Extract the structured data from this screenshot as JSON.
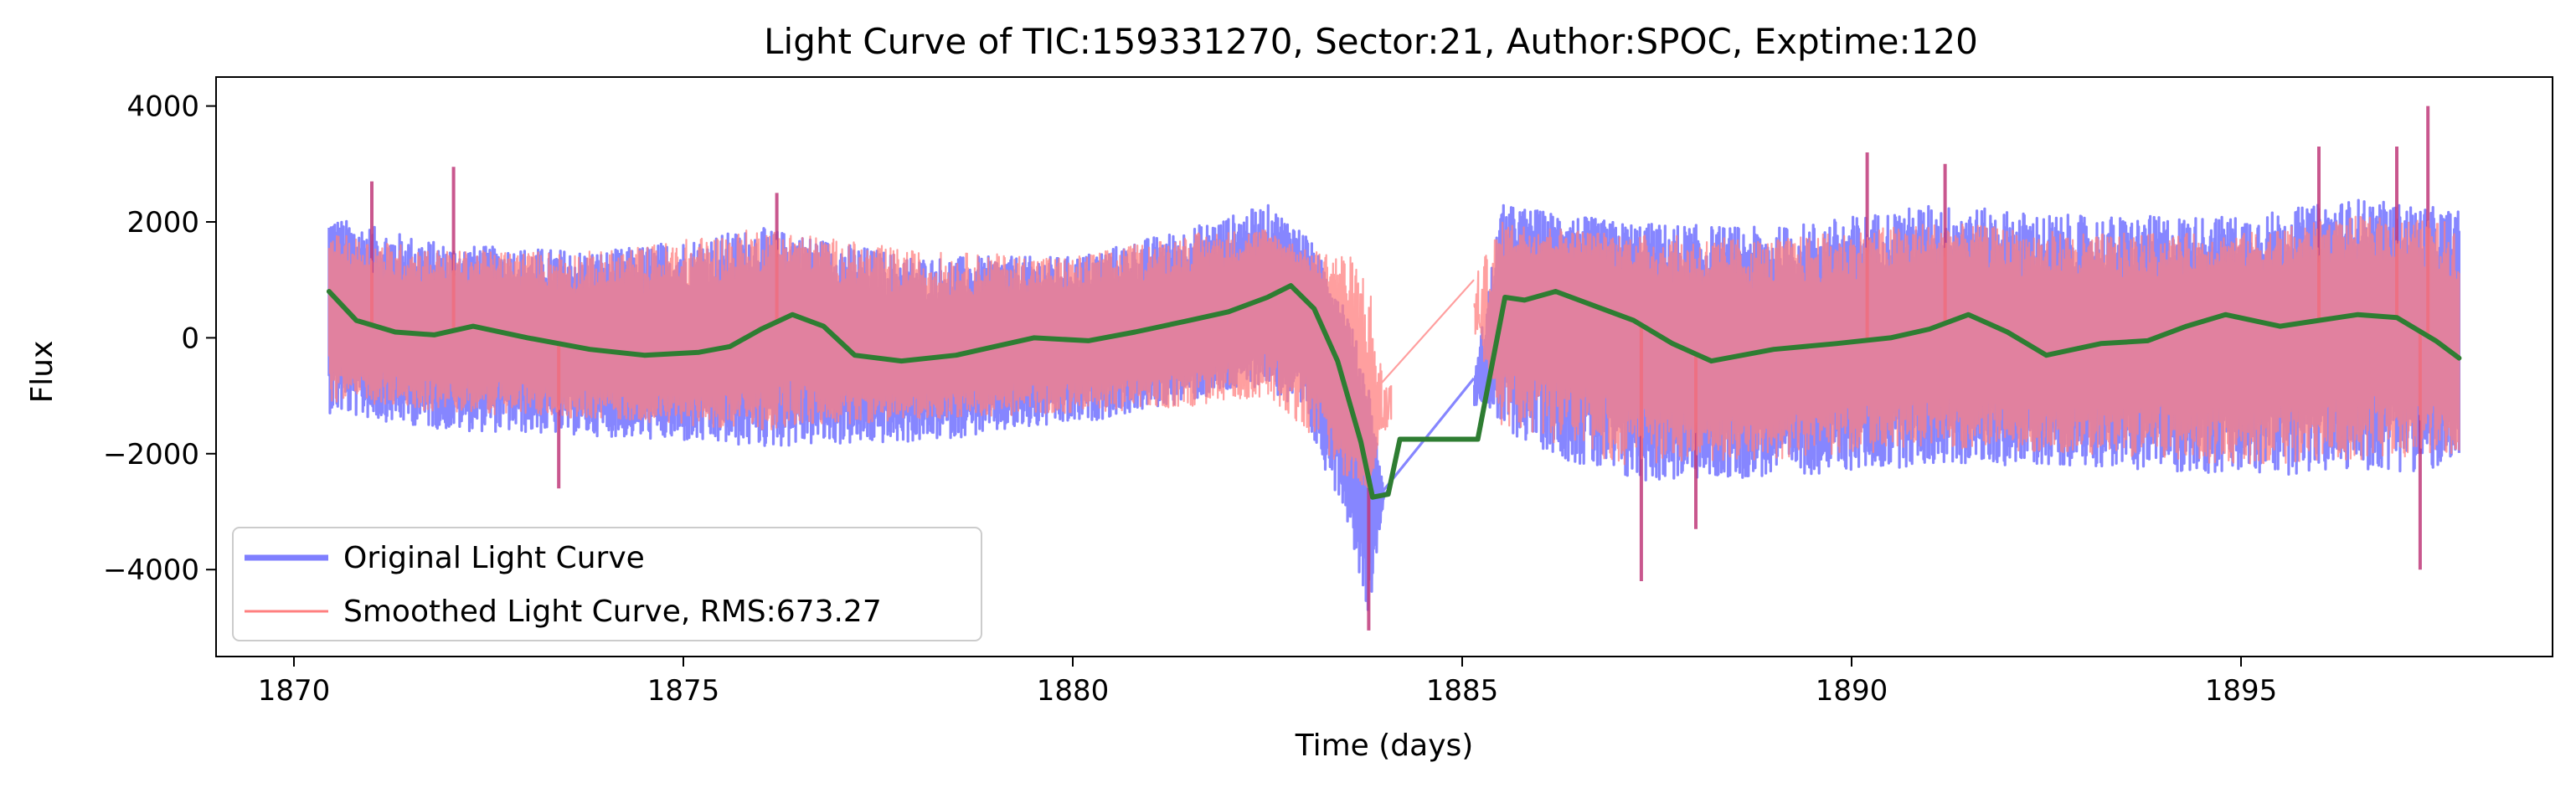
{
  "chart_data": {
    "type": "line",
    "title": "Light Curve of TIC:159331270, Sector:21, Author:SPOC, Exptime:120",
    "xlabel": "Time (days)",
    "ylabel": "Flux",
    "xlim": [
      1869.0,
      1899.0
    ],
    "ylim": [
      -5500,
      4500
    ],
    "xticks": [
      1870,
      1875,
      1880,
      1885,
      1890,
      1895
    ],
    "yticks": [
      -4000,
      -2000,
      0,
      2000,
      4000
    ],
    "xtick_labels": [
      "1870",
      "1875",
      "1880",
      "1885",
      "1890",
      "1895"
    ],
    "ytick_labels": [
      "−4000",
      "−2000",
      "0",
      "2000",
      "4000"
    ],
    "grid": false,
    "legend_position": "lower-left",
    "colors": {
      "original": "#7f7fff",
      "smoothed": "#ff7f7f",
      "trend": "#2e7d32",
      "overlap": "#c0397a"
    },
    "series": [
      {
        "name": "Original Light Curve",
        "style": "noisy-band",
        "envelope": {
          "x": [
            1870.45,
            1872.0,
            1874.0,
            1876.0,
            1878.0,
            1880.0,
            1881.5,
            1882.5,
            1883.0,
            1883.5,
            1883.8,
            1884.0,
            1885.15,
            1885.5,
            1887.0,
            1889.0,
            1891.0,
            1893.0,
            1895.0,
            1896.5,
            1897.8
          ],
          "upper": [
            2100,
            1600,
            1500,
            1900,
            1400,
            1400,
            1900,
            2300,
            1800,
            600,
            -800,
            -2700,
            -700,
            2300,
            2000,
            1900,
            2300,
            2100,
            2100,
            2400,
            2200
          ],
          "lower": [
            -1300,
            -1600,
            -1700,
            -1900,
            -1800,
            -1500,
            -1100,
            -800,
            -1600,
            -3000,
            -4800,
            -2700,
            -700,
            -1600,
            -2500,
            -2400,
            -2200,
            -2200,
            -2400,
            -2300,
            -2300
          ]
        },
        "spikes": [
          {
            "x": 1872.05,
            "y": 2950
          },
          {
            "x": 1871.0,
            "y": 2700
          },
          {
            "x": 1876.2,
            "y": 2500
          },
          {
            "x": 1890.2,
            "y": 3200
          },
          {
            "x": 1891.2,
            "y": 3000
          },
          {
            "x": 1896.0,
            "y": 3300
          },
          {
            "x": 1897.0,
            "y": 3300
          },
          {
            "x": 1897.4,
            "y": 4000
          },
          {
            "x": 1873.4,
            "y": -2600
          },
          {
            "x": 1887.3,
            "y": -4200
          },
          {
            "x": 1888.0,
            "y": -3300
          },
          {
            "x": 1897.3,
            "y": -4000
          },
          {
            "x": 1883.8,
            "y": -5050
          }
        ]
      },
      {
        "name": "Smoothed Light Curve, RMS:673.27",
        "style": "noisy-band",
        "envelope": {
          "x": [
            1870.45,
            1872.0,
            1874.0,
            1876.0,
            1878.0,
            1880.0,
            1881.5,
            1882.5,
            1883.0,
            1883.5,
            1883.8,
            1884.0,
            1885.15,
            1885.5,
            1887.0,
            1889.0,
            1891.0,
            1893.0,
            1895.0,
            1896.5,
            1897.8
          ],
          "upper": [
            1800,
            1500,
            1500,
            1900,
            1500,
            1400,
            1800,
            1900,
            1500,
            1500,
            1100,
            -800,
            1000,
            2000,
            1800,
            1700,
            2000,
            1800,
            1800,
            2100,
            2000
          ],
          "lower": [
            -1100,
            -1300,
            -1400,
            -1600,
            -1400,
            -1300,
            -1200,
            -1000,
            -1600,
            -2400,
            -2600,
            -800,
            1000,
            -1500,
            -2200,
            -2100,
            -1900,
            -2000,
            -2200,
            -2100,
            -2000
          ]
        }
      },
      {
        "name": "",
        "style": "trend-line",
        "x": [
          1870.45,
          1870.8,
          1871.3,
          1871.8,
          1872.3,
          1873.0,
          1873.8,
          1874.5,
          1875.2,
          1875.6,
          1876.0,
          1876.4,
          1876.8,
          1877.2,
          1877.8,
          1878.5,
          1879.0,
          1879.5,
          1880.2,
          1880.8,
          1881.5,
          1882.0,
          1882.5,
          1882.8,
          1883.1,
          1883.4,
          1883.7,
          1883.85,
          1884.05,
          1884.2,
          1885.2,
          1885.55,
          1885.8,
          1886.2,
          1886.7,
          1887.2,
          1887.7,
          1888.2,
          1889.0,
          1889.8,
          1890.5,
          1891.0,
          1891.5,
          1892.0,
          1892.5,
          1893.2,
          1893.8,
          1894.3,
          1894.8,
          1895.5,
          1896.0,
          1896.5,
          1897.0,
          1897.5,
          1897.8
        ],
        "y": [
          800,
          300,
          100,
          50,
          200,
          0,
          -200,
          -300,
          -250,
          -150,
          150,
          400,
          200,
          -300,
          -400,
          -300,
          -150,
          0,
          -50,
          100,
          300,
          450,
          700,
          900,
          500,
          -400,
          -1800,
          -2750,
          -2700,
          -1750,
          -1750,
          700,
          650,
          800,
          550,
          300,
          -100,
          -400,
          -200,
          -100,
          0,
          150,
          400,
          100,
          -300,
          -100,
          -50,
          200,
          400,
          200,
          300,
          400,
          350,
          -50,
          -350
        ]
      }
    ]
  }
}
